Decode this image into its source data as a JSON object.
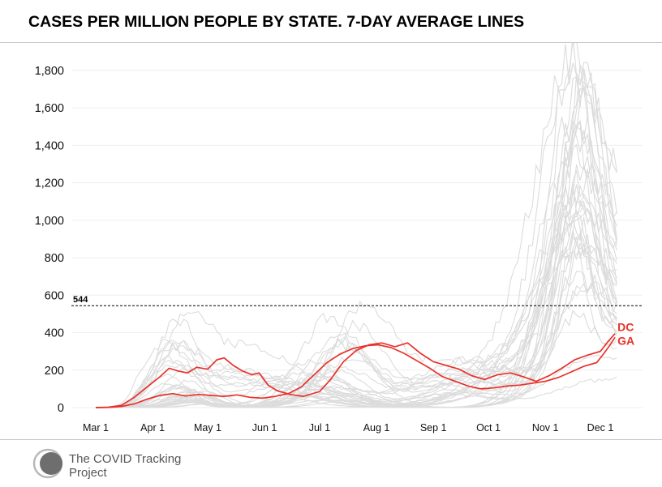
{
  "header": {
    "title": "CASES PER MILLION PEOPLE BY STATE. 7-DAY AVERAGE LINES"
  },
  "footer": {
    "org_name": "The COVID Tracking Project",
    "logo_icon": "ctp-logo-icon"
  },
  "colors": {
    "highlight": "#e8312a",
    "background_lines": "#dcdcdc",
    "text": "#000000",
    "reference_line": "#000000"
  },
  "chart_data": {
    "type": "line",
    "title": "CASES PER MILLION PEOPLE BY STATE. 7-DAY AVERAGE LINES",
    "xlabel": "",
    "ylabel": "",
    "x_start": "2020-03-01",
    "x_end": "2020-12-10",
    "x_ticks": [
      {
        "date": "2020-03-01",
        "label": "Mar 1"
      },
      {
        "date": "2020-04-01",
        "label": "Apr 1"
      },
      {
        "date": "2020-05-01",
        "label": "May 1"
      },
      {
        "date": "2020-06-01",
        "label": "Jun 1"
      },
      {
        "date": "2020-07-01",
        "label": "Jul 1"
      },
      {
        "date": "2020-08-01",
        "label": "Aug 1"
      },
      {
        "date": "2020-09-01",
        "label": "Sep 1"
      },
      {
        "date": "2020-10-01",
        "label": "Oct 1"
      },
      {
        "date": "2020-11-01",
        "label": "Nov 1"
      },
      {
        "date": "2020-12-01",
        "label": "Dec 1"
      }
    ],
    "y_ticks": [
      0,
      200,
      400,
      600,
      800,
      1000,
      1200,
      1400,
      1600,
      1800
    ],
    "y_tick_labels": [
      "0",
      "200",
      "400",
      "600",
      "800",
      "1,000",
      "1,200",
      "1,400",
      "1,600",
      "1,800"
    ],
    "ylim": [
      0,
      1850
    ],
    "grid": true,
    "legend": "none",
    "reference_line": {
      "value": 544,
      "label": "544"
    },
    "highlighted_series": [
      {
        "name": "DC",
        "label": "DC",
        "points": [
          [
            "2020-03-01",
            0
          ],
          [
            "2020-03-08",
            2
          ],
          [
            "2020-03-15",
            12
          ],
          [
            "2020-03-22",
            55
          ],
          [
            "2020-03-29",
            110
          ],
          [
            "2020-04-05",
            165
          ],
          [
            "2020-04-10",
            210
          ],
          [
            "2020-04-15",
            195
          ],
          [
            "2020-04-20",
            185
          ],
          [
            "2020-04-25",
            215
          ],
          [
            "2020-05-01",
            205
          ],
          [
            "2020-05-06",
            255
          ],
          [
            "2020-05-10",
            265
          ],
          [
            "2020-05-15",
            225
          ],
          [
            "2020-05-20",
            195
          ],
          [
            "2020-05-25",
            175
          ],
          [
            "2020-05-29",
            185
          ],
          [
            "2020-06-03",
            120
          ],
          [
            "2020-06-08",
            90
          ],
          [
            "2020-06-15",
            70
          ],
          [
            "2020-06-22",
            60
          ],
          [
            "2020-07-01",
            85
          ],
          [
            "2020-07-07",
            150
          ],
          [
            "2020-07-14",
            245
          ],
          [
            "2020-07-21",
            305
          ],
          [
            "2020-07-28",
            335
          ],
          [
            "2020-08-04",
            345
          ],
          [
            "2020-08-11",
            325
          ],
          [
            "2020-08-18",
            345
          ],
          [
            "2020-08-25",
            290
          ],
          [
            "2020-09-01",
            245
          ],
          [
            "2020-09-08",
            225
          ],
          [
            "2020-09-15",
            205
          ],
          [
            "2020-09-22",
            170
          ],
          [
            "2020-09-29",
            150
          ],
          [
            "2020-10-06",
            175
          ],
          [
            "2020-10-13",
            185
          ],
          [
            "2020-10-20",
            165
          ],
          [
            "2020-10-27",
            140
          ],
          [
            "2020-11-03",
            170
          ],
          [
            "2020-11-10",
            210
          ],
          [
            "2020-11-17",
            255
          ],
          [
            "2020-11-24",
            280
          ],
          [
            "2020-12-01",
            300
          ],
          [
            "2020-12-05",
            350
          ],
          [
            "2020-12-09",
            395
          ]
        ]
      },
      {
        "name": "GA",
        "label": "GA",
        "points": [
          [
            "2020-03-01",
            0
          ],
          [
            "2020-03-08",
            1
          ],
          [
            "2020-03-15",
            6
          ],
          [
            "2020-03-22",
            20
          ],
          [
            "2020-03-29",
            45
          ],
          [
            "2020-04-05",
            65
          ],
          [
            "2020-04-12",
            75
          ],
          [
            "2020-04-19",
            62
          ],
          [
            "2020-04-26",
            70
          ],
          [
            "2020-05-03",
            65
          ],
          [
            "2020-05-10",
            60
          ],
          [
            "2020-05-17",
            68
          ],
          [
            "2020-05-24",
            55
          ],
          [
            "2020-05-31",
            50
          ],
          [
            "2020-06-07",
            60
          ],
          [
            "2020-06-14",
            75
          ],
          [
            "2020-06-21",
            110
          ],
          [
            "2020-06-28",
            175
          ],
          [
            "2020-07-05",
            240
          ],
          [
            "2020-07-12",
            285
          ],
          [
            "2020-07-19",
            315
          ],
          [
            "2020-07-26",
            330
          ],
          [
            "2020-08-02",
            335
          ],
          [
            "2020-08-09",
            320
          ],
          [
            "2020-08-16",
            290
          ],
          [
            "2020-08-23",
            250
          ],
          [
            "2020-08-30",
            210
          ],
          [
            "2020-09-06",
            165
          ],
          [
            "2020-09-13",
            140
          ],
          [
            "2020-09-20",
            115
          ],
          [
            "2020-09-27",
            100
          ],
          [
            "2020-10-04",
            105
          ],
          [
            "2020-10-11",
            115
          ],
          [
            "2020-10-18",
            120
          ],
          [
            "2020-10-25",
            130
          ],
          [
            "2020-11-01",
            140
          ],
          [
            "2020-11-08",
            160
          ],
          [
            "2020-11-15",
            190
          ],
          [
            "2020-11-22",
            220
          ],
          [
            "2020-11-29",
            240
          ],
          [
            "2020-12-03",
            290
          ],
          [
            "2020-12-06",
            330
          ],
          [
            "2020-12-09",
            375
          ]
        ]
      }
    ],
    "background_series_profiles": [
      {
        "a": 150,
        "ad": 38,
        "s": 60,
        "sd": 48,
        "f": 150,
        "fd": 82,
        "e": 330,
        "p": 740
      },
      {
        "a": 400,
        "ad": 44,
        "s": 40,
        "sd": 52,
        "f": 120,
        "fd": 88,
        "e": 320,
        "p": 1750
      },
      {
        "a": 350,
        "ad": 48,
        "s": 90,
        "sd": 58,
        "f": 310,
        "fd": 87,
        "e": 300,
        "p": 960
      },
      {
        "a": 70,
        "ad": 40,
        "s": 480,
        "sd": 128,
        "f": 250,
        "fd": 200,
        "e": 560,
        "p": 760
      },
      {
        "a": 250,
        "ad": 36,
        "s": 50,
        "sd": 45,
        "f": 200,
        "fd": 78,
        "e": 450,
        "p": 590
      },
      {
        "a": 40,
        "ad": 50,
        "s": 200,
        "sd": 135,
        "f": 140,
        "fd": 198,
        "e": 410,
        "p": 820
      },
      {
        "a": 90,
        "ad": 52,
        "s": 110,
        "sd": 125,
        "f": 170,
        "fd": 190,
        "e": 390,
        "p": 1300
      },
      {
        "a": 300,
        "ad": 40,
        "s": 30,
        "sd": 50,
        "f": 130,
        "fd": 110,
        "e": 350,
        "p": 1100
      },
      {
        "a": 60,
        "ad": 55,
        "s": 70,
        "sd": 140,
        "f": 260,
        "fd": 240,
        "e": 480,
        "p": 1200
      },
      {
        "a": 200,
        "ad": 42,
        "s": 120,
        "sd": 60,
        "f": 120,
        "fd": 76,
        "e": 290,
        "p": 880
      },
      {
        "a": 120,
        "ad": 46,
        "s": 380,
        "sd": 132,
        "f": 230,
        "fd": 205,
        "e": 510,
        "p": 600
      },
      {
        "a": 30,
        "ad": 56,
        "s": 60,
        "sd": 115,
        "f": 100,
        "fd": 220,
        "e": 380,
        "p": 1650
      },
      {
        "a": 170,
        "ad": 38,
        "s": 300,
        "sd": 138,
        "f": 180,
        "fd": 195,
        "e": 400,
        "p": 690
      },
      {
        "a": 80,
        "ad": 54,
        "s": 160,
        "sd": 120,
        "f": 330,
        "fd": 236,
        "e": 600,
        "p": 1000
      },
      {
        "a": 260,
        "ad": 45,
        "s": 50,
        "sd": 55,
        "f": 160,
        "fd": 92,
        "e": 360,
        "p": 450
      },
      {
        "a": 50,
        "ad": 58,
        "s": 250,
        "sd": 118,
        "f": 150,
        "fd": 226,
        "e": 430,
        "p": 1430
      },
      {
        "a": 140,
        "ad": 50,
        "s": 430,
        "sd": 142,
        "f": 200,
        "fd": 210,
        "e": 380,
        "p": 640
      },
      {
        "a": 20,
        "ad": 60,
        "s": 40,
        "sd": 125,
        "f": 90,
        "fd": 212,
        "e": 420,
        "p": 1500
      },
      {
        "a": 100,
        "ad": 44,
        "s": 200,
        "sd": 130,
        "f": 240,
        "fd": 220,
        "e": 530,
        "p": 780
      },
      {
        "a": 330,
        "ad": 42,
        "s": 60,
        "sd": 55,
        "f": 180,
        "fd": 115,
        "e": 270,
        "p": 840
      },
      {
        "a": 60,
        "ad": 48,
        "s": 350,
        "sd": 135,
        "f": 110,
        "fd": 232,
        "e": 470,
        "p": 1250
      },
      {
        "a": 180,
        "ad": 40,
        "s": 90,
        "sd": 65,
        "f": 160,
        "fd": 98,
        "e": 330,
        "p": 550
      },
      {
        "a": 40,
        "ad": 52,
        "s": 140,
        "sd": 110,
        "f": 280,
        "fd": 238,
        "e": 560,
        "p": 930
      },
      {
        "a": 220,
        "ad": 38,
        "s": 70,
        "sd": 60,
        "f": 140,
        "fd": 104,
        "e": 300,
        "p": 1050
      },
      {
        "a": 90,
        "ad": 58,
        "s": 520,
        "sd": 145,
        "f": 250,
        "fd": 196,
        "e": 610,
        "p": 700
      },
      {
        "a": 30,
        "ad": 50,
        "s": 110,
        "sd": 128,
        "f": 210,
        "fd": 244,
        "e": 520,
        "p": 1180
      },
      {
        "a": 110,
        "ad": 44,
        "s": 250,
        "sd": 138,
        "f": 120,
        "fd": 190,
        "e": 300,
        "p": 480
      },
      {
        "a": 150,
        "ad": 48,
        "s": 60,
        "sd": 58,
        "f": 300,
        "fd": 228,
        "e": 650,
        "p": 1380
      },
      {
        "a": 45,
        "ad": 46,
        "s": 180,
        "sd": 122,
        "f": 190,
        "fd": 214,
        "e": 440,
        "p": 820
      },
      {
        "a": 70,
        "ad": 56,
        "s": 90,
        "sd": 118,
        "f": 110,
        "fd": 180,
        "e": 260,
        "p": 350
      },
      {
        "a": 130,
        "ad": 40,
        "s": 330,
        "sd": 135,
        "f": 160,
        "fd": 208,
        "e": 420,
        "p": 1110
      },
      {
        "a": 20,
        "ad": 62,
        "s": 80,
        "sd": 130,
        "f": 140,
        "fd": 224,
        "e": 360,
        "p": 620
      },
      {
        "a": 60,
        "ad": 44,
        "s": 40,
        "sd": 140,
        "f": 90,
        "fd": 230,
        "e": 300,
        "p": 1560
      },
      {
        "a": 85,
        "ad": 50,
        "s": 150,
        "sd": 126,
        "f": 200,
        "fd": 200,
        "e": 480,
        "p": 900
      },
      {
        "a": 25,
        "ad": 52,
        "s": 60,
        "sd": 120,
        "f": 80,
        "fd": 200,
        "e": 180,
        "p": 150
      },
      {
        "a": 35,
        "ad": 54,
        "s": 70,
        "sd": 124,
        "f": 70,
        "fd": 190,
        "e": 120,
        "p": 60
      }
    ]
  }
}
